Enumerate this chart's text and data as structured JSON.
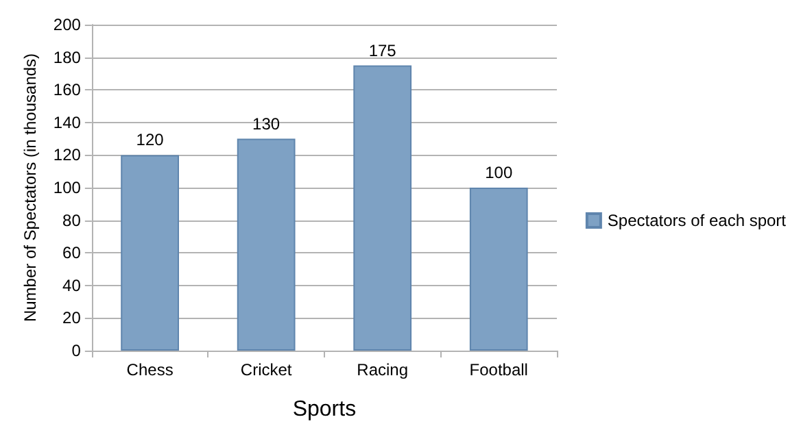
{
  "chart_data": {
    "type": "bar",
    "xlabel": "Sports",
    "ylabel": "Number of Spectators (in thousands)",
    "categories": [
      "Chess",
      "Cricket",
      "Racing",
      "Football"
    ],
    "series": [
      {
        "name": "Spectators of each sport",
        "color": "#7ea1c4",
        "values": [
          120,
          130,
          175,
          100
        ]
      }
    ],
    "ylim": [
      0,
      200
    ],
    "yticks": [
      0,
      20,
      40,
      60,
      80,
      100,
      120,
      140,
      160,
      180,
      200
    ],
    "grid": "y",
    "legend": "right",
    "data_labels": true
  }
}
